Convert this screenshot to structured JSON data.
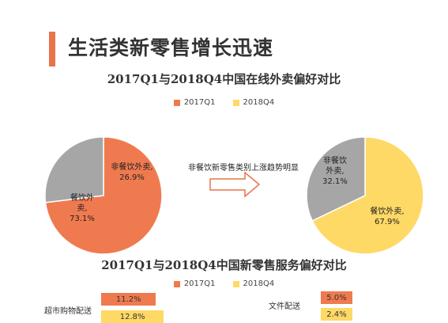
{
  "header": {
    "title": "生活类新零售增长迅速"
  },
  "colors": {
    "accent": "#e8744a",
    "q1": "#f07a4f",
    "q4": "#ffd966",
    "gray": "#a6a6a6"
  },
  "section1": {
    "title": "2017Q1与2018Q4中国在线外卖偏好对比",
    "legend": [
      "2017Q1",
      "2018Q4"
    ],
    "arrow_label": "非餐饮新零售类别上涨趋势明显"
  },
  "section2": {
    "title": "2017Q1与2018Q4中国新零售服务偏好对比",
    "legend": [
      "2017Q1",
      "2018Q4"
    ]
  },
  "chart_data": [
    {
      "type": "pie",
      "period": "2017Q1",
      "slices": [
        {
          "label": "餐饮外卖",
          "display": "餐饮外\n卖,\n73.1%",
          "value": 73.1,
          "color": "#f07a4f"
        },
        {
          "label": "非餐饮外卖",
          "display": "非餐饮外卖,\n26.9%",
          "value": 26.9,
          "color": "#a6a6a6"
        }
      ]
    },
    {
      "type": "pie",
      "period": "2018Q4",
      "slices": [
        {
          "label": "餐饮外卖",
          "display": "餐饮外卖,\n67.9%",
          "value": 67.9,
          "color": "#ffd966"
        },
        {
          "label": "非餐饮外卖",
          "display": "非餐饮\n外卖,\n32.1%",
          "value": 32.1,
          "color": "#a6a6a6"
        }
      ]
    },
    {
      "type": "bar",
      "categories": [
        "超市购物配送",
        "文件配送"
      ],
      "series": [
        {
          "name": "2017Q1",
          "values": [
            11.2,
            5.0
          ],
          "labels": [
            "11.2%",
            "5.0%"
          ]
        },
        {
          "name": "2018Q4",
          "values": [
            12.8,
            2.4
          ],
          "labels": [
            "12.8%",
            "2.4%"
          ]
        }
      ]
    }
  ]
}
